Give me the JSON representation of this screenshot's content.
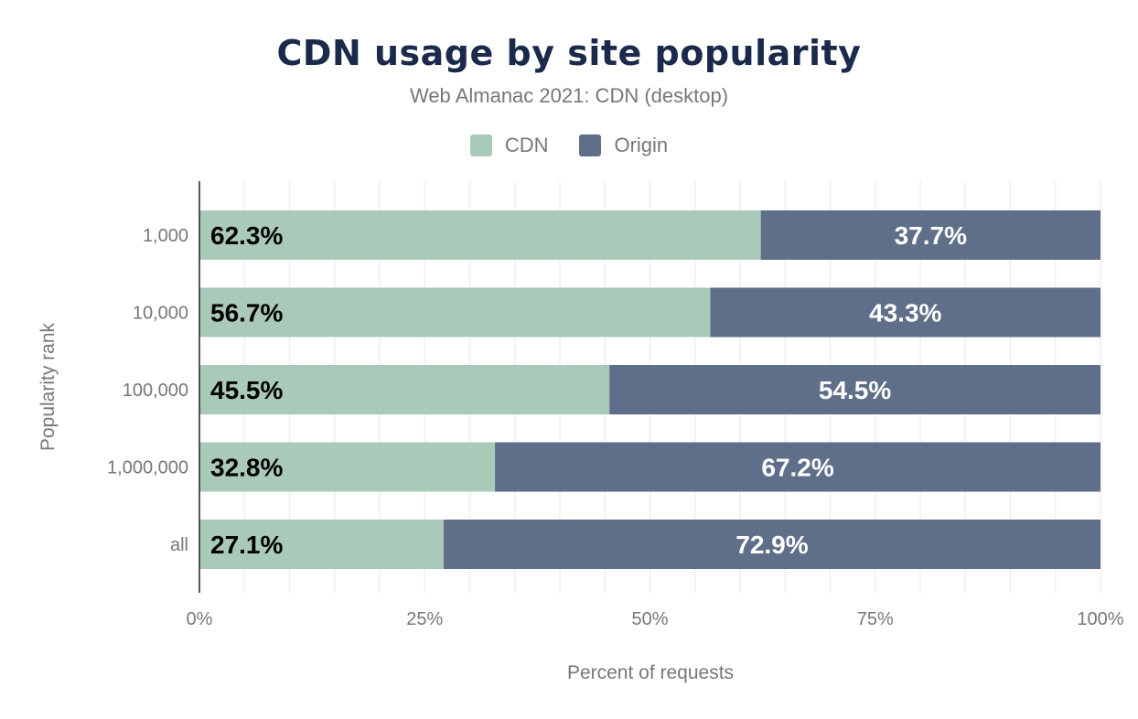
{
  "chart_data": {
    "type": "bar",
    "orientation": "horizontal",
    "stacked": true,
    "title": "CDN usage by site popularity",
    "subtitle": "Web Almanac 2021: CDN (desktop)",
    "xlabel": "Percent of requests",
    "ylabel": "Popularity rank",
    "categories": [
      "1,000",
      "10,000",
      "100,000",
      "1,000,000",
      "all"
    ],
    "series": [
      {
        "name": "CDN",
        "color": "#a9c9b9",
        "values": [
          62.3,
          56.7,
          45.5,
          32.8,
          27.1
        ],
        "labels": [
          "62.3%",
          "56.7%",
          "45.5%",
          "32.8%",
          "27.1%"
        ]
      },
      {
        "name": "Origin",
        "color": "#5f6f8a",
        "values": [
          37.7,
          43.3,
          54.5,
          67.2,
          72.9
        ],
        "labels": [
          "37.7%",
          "43.3%",
          "54.5%",
          "67.2%",
          "72.9%"
        ]
      }
    ],
    "xlim": [
      0,
      100
    ],
    "xticks": [
      "0%",
      "25%",
      "50%",
      "75%",
      "100%"
    ],
    "grid": true,
    "legend": "top-center"
  }
}
